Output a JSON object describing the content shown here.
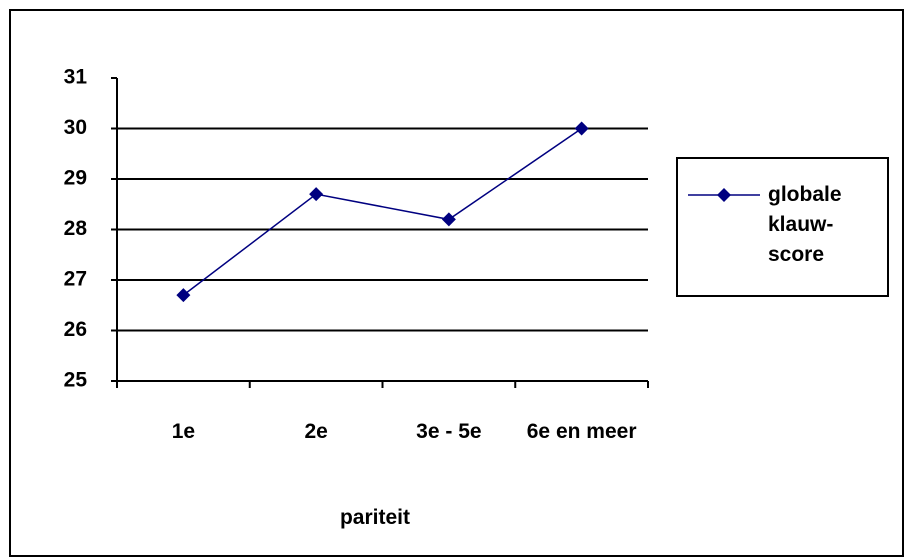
{
  "chart_data": {
    "type": "line",
    "categories": [
      "1e",
      "2e",
      "3e - 5e",
      "6e en meer"
    ],
    "series": [
      {
        "name": "globale klauw-score",
        "color": "#000080",
        "values": [
          26.7,
          28.7,
          28.2,
          30.0
        ]
      }
    ],
    "ylim": [
      25,
      31
    ],
    "yticks": [
      25,
      26,
      27,
      28,
      29,
      30,
      31
    ],
    "grid": true,
    "xlabel": "pariteit",
    "legend": "right"
  }
}
